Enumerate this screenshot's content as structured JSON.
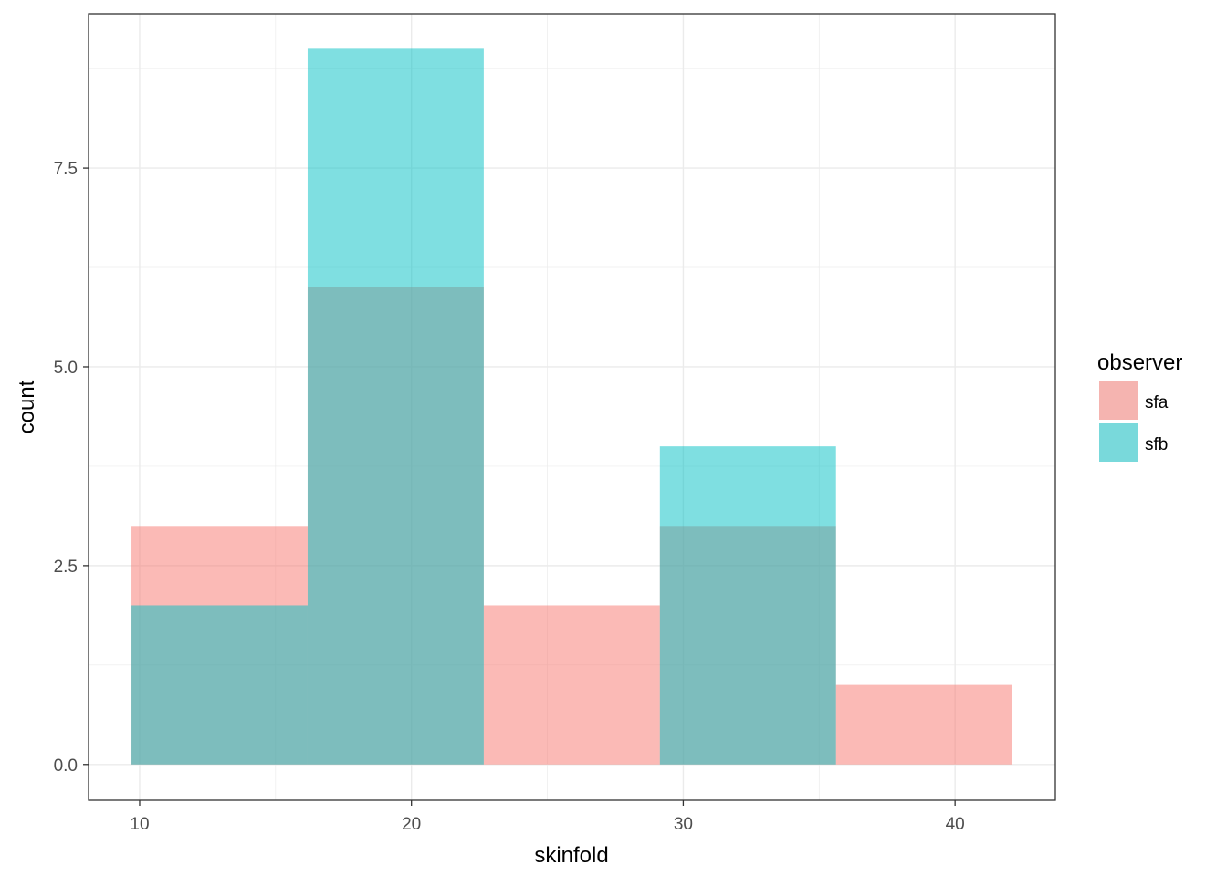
{
  "chart_data": {
    "type": "bar",
    "subtype": "overlapping histogram",
    "title": "",
    "xlabel": "skinfold",
    "ylabel": "count",
    "xlim": [
      8.12,
      43.69
    ],
    "ylim": [
      -0.45,
      9.44
    ],
    "x_ticks": [
      10,
      20,
      30,
      40
    ],
    "x_tick_labels": [
      "10",
      "20",
      "30",
      "40"
    ],
    "y_ticks": [
      0,
      2.5,
      5,
      7.5
    ],
    "y_tick_labels": [
      "0.0",
      "2.5",
      "5.0",
      "7.5"
    ],
    "bin_edges": [
      9.7,
      16.18,
      22.66,
      29.14,
      35.62,
      42.1
    ],
    "grid": true,
    "legend": {
      "title": "observer",
      "position": "right"
    },
    "series": [
      {
        "name": "sfa",
        "color": "#F8766D",
        "opacity": 0.5,
        "values": [
          3,
          6,
          2,
          3,
          1
        ]
      },
      {
        "name": "sfb",
        "color": "#00BFC4",
        "opacity": 0.5,
        "values": [
          2,
          9,
          0,
          4,
          0
        ]
      }
    ]
  }
}
